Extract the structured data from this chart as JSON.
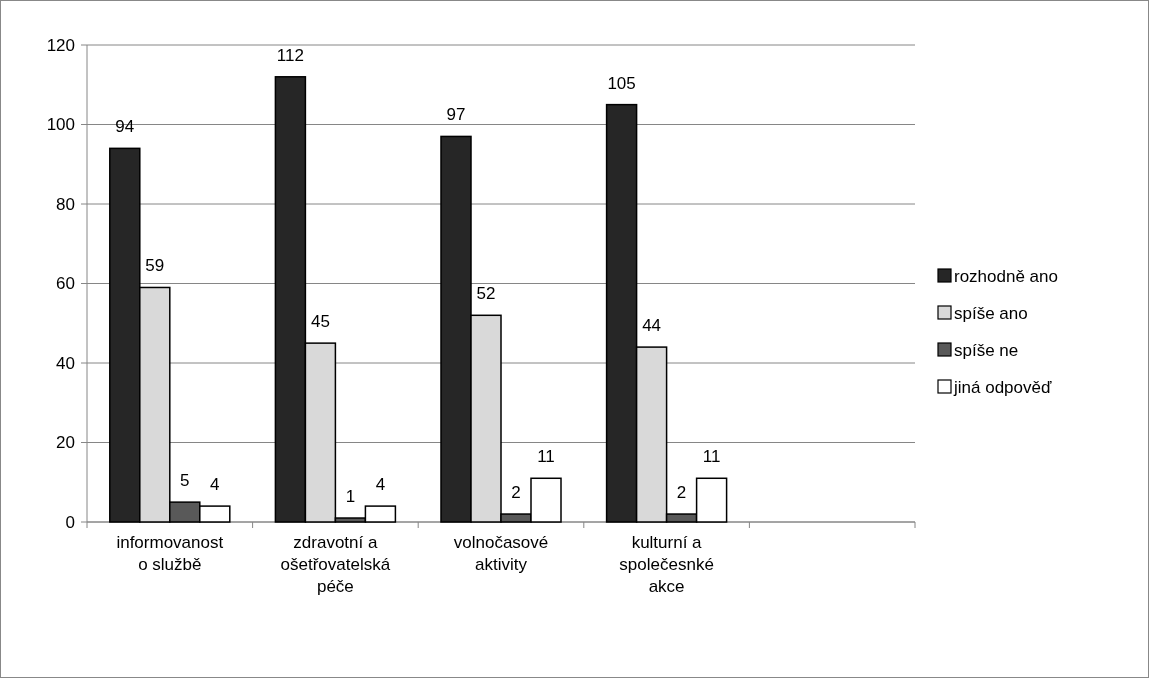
{
  "chart_data": {
    "type": "bar",
    "categories": [
      "informovanost o službě",
      "zdravotní a ošetřovatelská péče",
      "volnočasové aktivity",
      "kulturní a společesnké akce",
      null
    ],
    "series": [
      {
        "name": "rozhodně ano",
        "color": "#262626",
        "values": [
          94,
          112,
          97,
          105,
          null
        ]
      },
      {
        "name": "spíše ano",
        "color": "#d9d9d9",
        "values": [
          59,
          45,
          52,
          44,
          null
        ]
      },
      {
        "name": "spíše ne",
        "color": "#595959",
        "values": [
          5,
          1,
          2,
          2,
          null
        ]
      },
      {
        "name": "jiná odpověď",
        "color": "#ffffff",
        "values": [
          4,
          4,
          11,
          11,
          null
        ]
      }
    ],
    "ylim": [
      0,
      120
    ],
    "yticks": [
      0,
      20,
      40,
      60,
      80,
      100,
      120
    ],
    "grid": "y",
    "legend": "right",
    "data_labels": true
  }
}
